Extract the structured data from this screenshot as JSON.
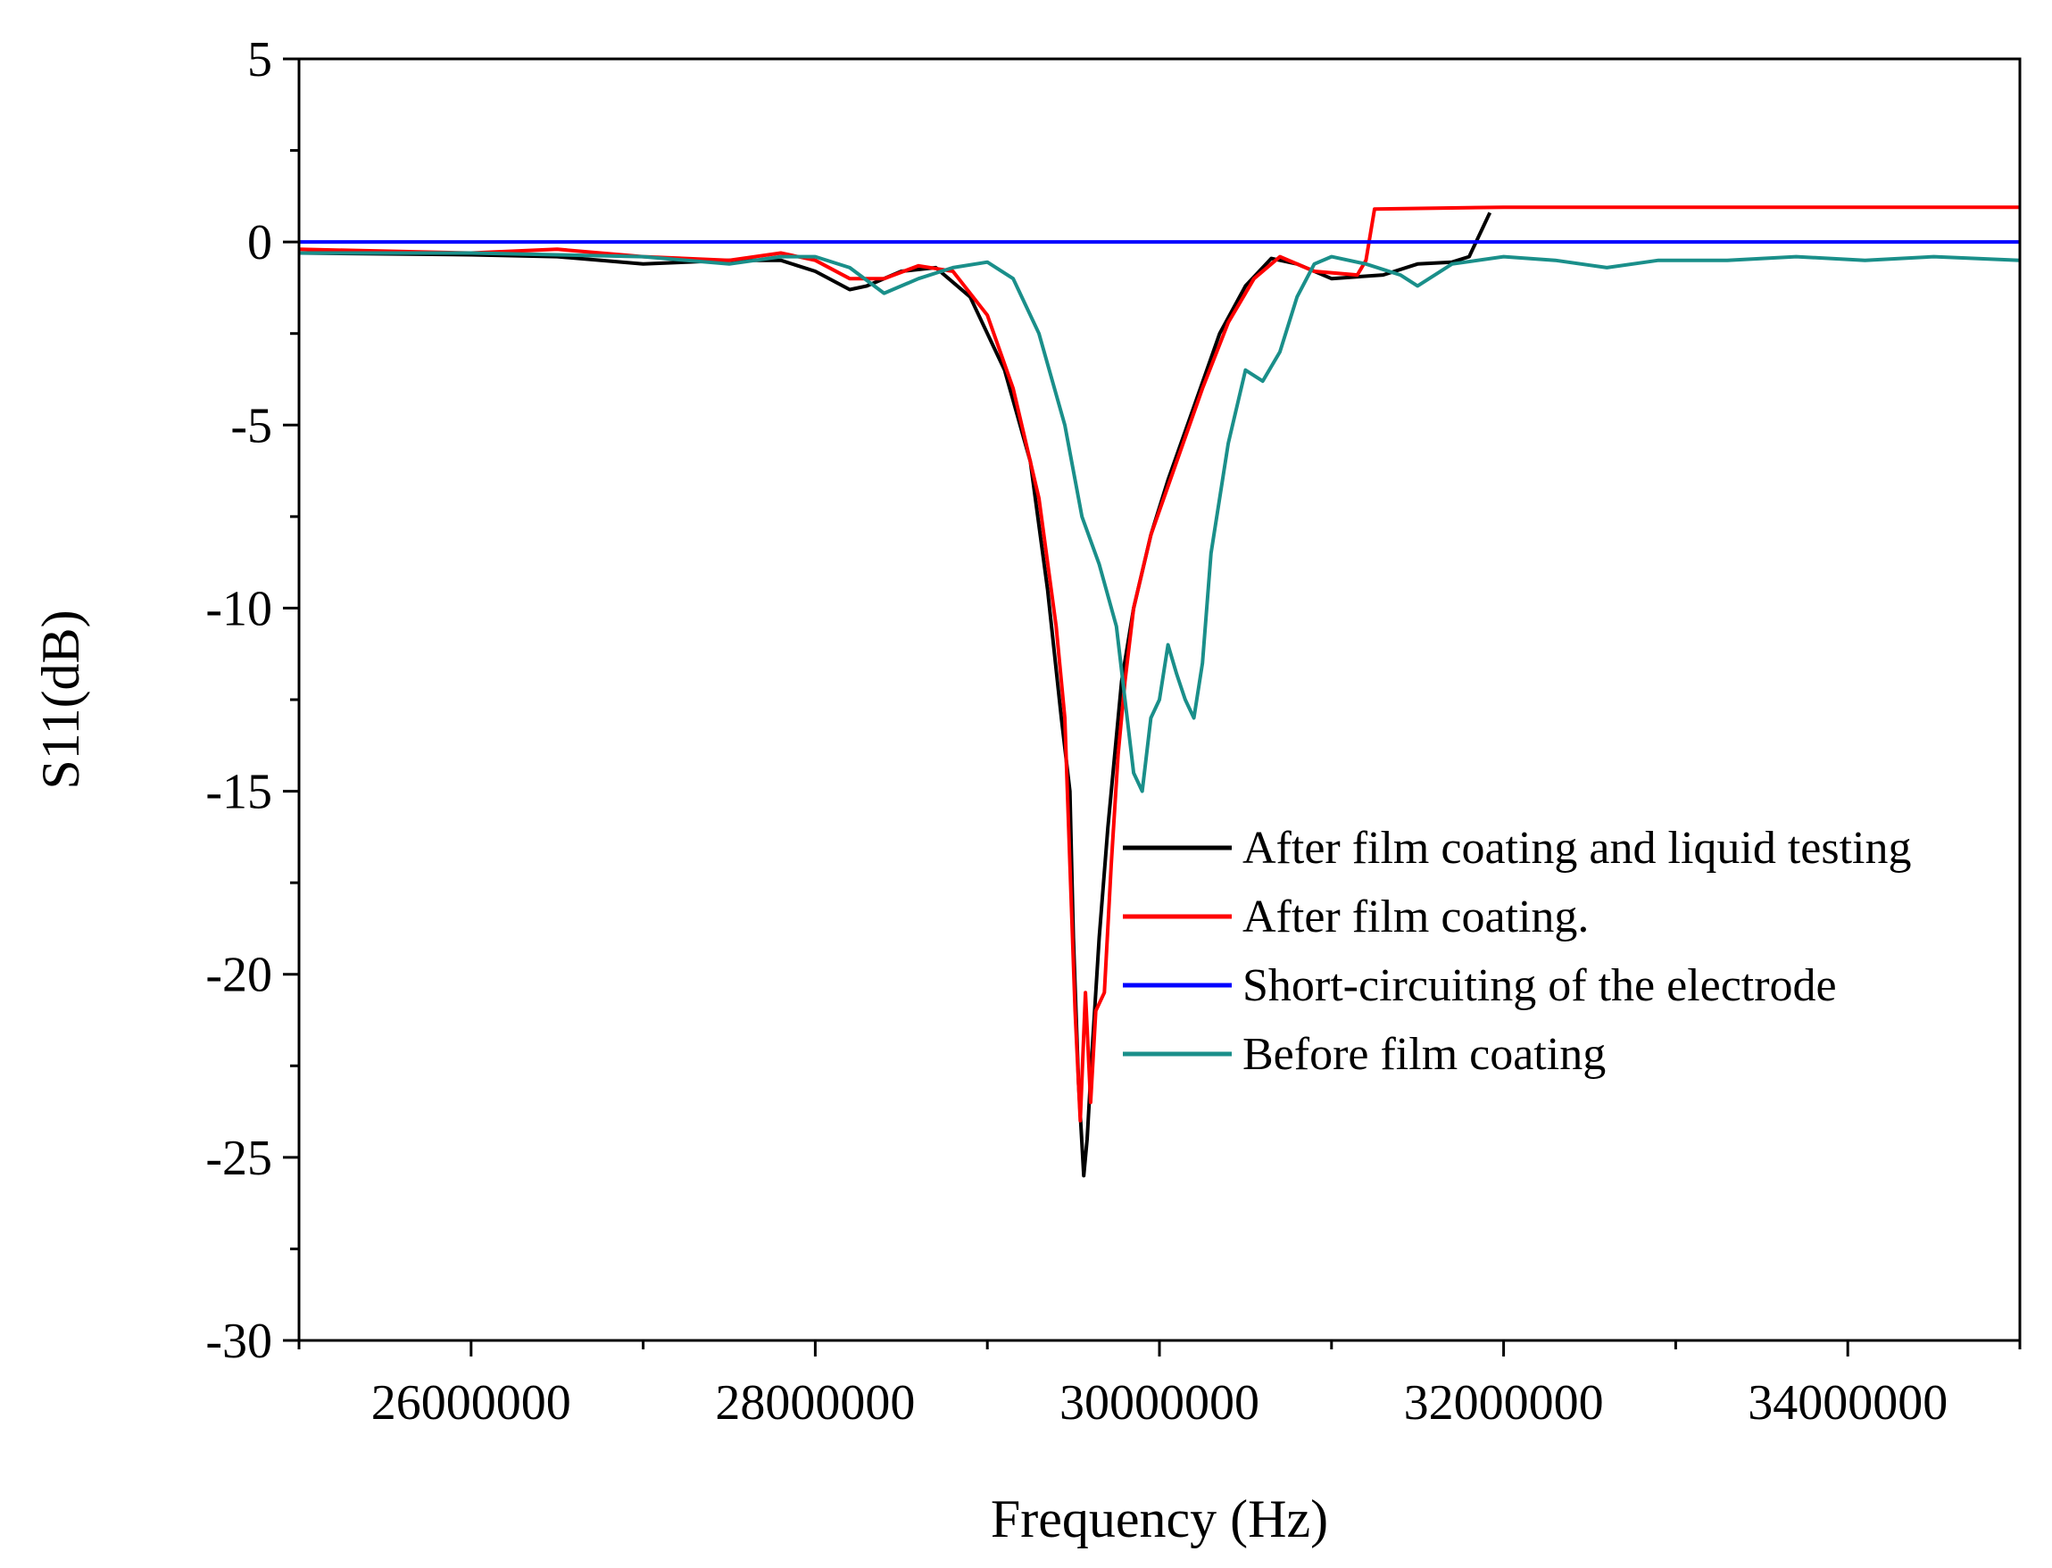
{
  "chart_data": {
    "type": "line",
    "title": "",
    "xlabel": "Frequency (Hz)",
    "ylabel": "S11(dB)",
    "xlim": [
      25000000,
      35000000
    ],
    "ylim": [
      -30,
      5
    ],
    "x_ticks": [
      26000000,
      28000000,
      30000000,
      32000000,
      34000000
    ],
    "x_tick_labels": [
      "26000000",
      "28000000",
      "30000000",
      "32000000",
      "34000000"
    ],
    "y_ticks": [
      5,
      0,
      -5,
      -10,
      -15,
      -20,
      -25,
      -30
    ],
    "y_tick_labels": [
      "5",
      "0",
      "-5",
      "-10",
      "-15",
      "-20",
      "-25",
      "-30"
    ],
    "legend_position": "center-right",
    "grid": false,
    "series": [
      {
        "name": "After film coating and liquid testing",
        "color": "#000000",
        "points": [
          [
            25000000,
            -0.3
          ],
          [
            26000000,
            -0.35
          ],
          [
            26500000,
            -0.4
          ],
          [
            27000000,
            -0.6
          ],
          [
            27500000,
            -0.5
          ],
          [
            27800000,
            -0.5
          ],
          [
            28000000,
            -0.8
          ],
          [
            28200000,
            -1.3
          ],
          [
            28300000,
            -1.2
          ],
          [
            28500000,
            -0.8
          ],
          [
            28700000,
            -0.7
          ],
          [
            28900000,
            -1.5
          ],
          [
            29100000,
            -3.5
          ],
          [
            29250000,
            -6.0
          ],
          [
            29350000,
            -9.5
          ],
          [
            29430000,
            -13.0
          ],
          [
            29480000,
            -15.0
          ],
          [
            29500000,
            -19.0
          ],
          [
            29530000,
            -23.0
          ],
          [
            29560000,
            -25.5
          ],
          [
            29580000,
            -24.5
          ],
          [
            29610000,
            -22.0
          ],
          [
            29650000,
            -19.0
          ],
          [
            29700000,
            -16.0
          ],
          [
            29780000,
            -12.0
          ],
          [
            29850000,
            -10.0
          ],
          [
            29950000,
            -8.0
          ],
          [
            30050000,
            -6.5
          ],
          [
            30200000,
            -4.5
          ],
          [
            30350000,
            -2.5
          ],
          [
            30500000,
            -1.2
          ],
          [
            30650000,
            -0.45
          ],
          [
            30800000,
            -0.6
          ],
          [
            31000000,
            -1.0
          ],
          [
            31300000,
            -0.9
          ],
          [
            31500000,
            -0.6
          ],
          [
            31700000,
            -0.55
          ],
          [
            31800000,
            -0.4
          ],
          [
            31850000,
            0.1
          ],
          [
            31920000,
            0.8
          ]
        ]
      },
      {
        "name": "After film coating.",
        "color": "#ff0000",
        "points": [
          [
            25000000,
            -0.2
          ],
          [
            26000000,
            -0.3
          ],
          [
            26500000,
            -0.2
          ],
          [
            27000000,
            -0.4
          ],
          [
            27500000,
            -0.5
          ],
          [
            27800000,
            -0.3
          ],
          [
            28000000,
            -0.5
          ],
          [
            28200000,
            -1.0
          ],
          [
            28400000,
            -1.0
          ],
          [
            28600000,
            -0.65
          ],
          [
            28800000,
            -0.8
          ],
          [
            29000000,
            -2.0
          ],
          [
            29150000,
            -4.0
          ],
          [
            29300000,
            -7.0
          ],
          [
            29400000,
            -10.5
          ],
          [
            29450000,
            -13.0
          ],
          [
            29480000,
            -17.0
          ],
          [
            29510000,
            -21.0
          ],
          [
            29540000,
            -24.0
          ],
          [
            29570000,
            -20.5
          ],
          [
            29600000,
            -23.5
          ],
          [
            29630000,
            -21.0
          ],
          [
            29680000,
            -20.5
          ],
          [
            29720000,
            -17.0
          ],
          [
            29760000,
            -14.0
          ],
          [
            29800000,
            -12.0
          ],
          [
            29850000,
            -10.0
          ],
          [
            29950000,
            -8.0
          ],
          [
            30100000,
            -6.0
          ],
          [
            30250000,
            -4.0
          ],
          [
            30400000,
            -2.2
          ],
          [
            30550000,
            -1.0
          ],
          [
            30700000,
            -0.4
          ],
          [
            30900000,
            -0.8
          ],
          [
            31150000,
            -0.9
          ],
          [
            31200000,
            -0.5
          ],
          [
            31250000,
            0.9
          ],
          [
            32000000,
            0.95
          ],
          [
            35000000,
            0.95
          ]
        ]
      },
      {
        "name": "Short-circuiting of the electrode",
        "color": "#0000ff",
        "points": [
          [
            25000000,
            0
          ],
          [
            35000000,
            0
          ]
        ]
      },
      {
        "name": "Before film coating",
        "color": "#1a8f8a",
        "points": [
          [
            25000000,
            -0.3
          ],
          [
            26000000,
            -0.3
          ],
          [
            26500000,
            -0.35
          ],
          [
            27000000,
            -0.4
          ],
          [
            27500000,
            -0.6
          ],
          [
            27800000,
            -0.4
          ],
          [
            28000000,
            -0.4
          ],
          [
            28200000,
            -0.7
          ],
          [
            28400000,
            -1.4
          ],
          [
            28600000,
            -1.0
          ],
          [
            28800000,
            -0.7
          ],
          [
            29000000,
            -0.55
          ],
          [
            29150000,
            -1.0
          ],
          [
            29300000,
            -2.5
          ],
          [
            29450000,
            -5.0
          ],
          [
            29550000,
            -7.5
          ],
          [
            29650000,
            -8.8
          ],
          [
            29750000,
            -10.5
          ],
          [
            29800000,
            -12.5
          ],
          [
            29850000,
            -14.5
          ],
          [
            29900000,
            -15.0
          ],
          [
            29950000,
            -13.0
          ],
          [
            30000000,
            -12.5
          ],
          [
            30050000,
            -11.0
          ],
          [
            30100000,
            -11.8
          ],
          [
            30150000,
            -12.5
          ],
          [
            30200000,
            -13.0
          ],
          [
            30250000,
            -11.5
          ],
          [
            30300000,
            -8.5
          ],
          [
            30400000,
            -5.5
          ],
          [
            30500000,
            -3.5
          ],
          [
            30600000,
            -3.8
          ],
          [
            30700000,
            -3.0
          ],
          [
            30800000,
            -1.5
          ],
          [
            30900000,
            -0.6
          ],
          [
            31000000,
            -0.4
          ],
          [
            31200000,
            -0.6
          ],
          [
            31400000,
            -0.9
          ],
          [
            31500000,
            -1.2
          ],
          [
            31700000,
            -0.6
          ],
          [
            32000000,
            -0.4
          ],
          [
            32300000,
            -0.5
          ],
          [
            32600000,
            -0.7
          ],
          [
            32900000,
            -0.5
          ],
          [
            33300000,
            -0.5
          ],
          [
            33700000,
            -0.4
          ],
          [
            34100000,
            -0.5
          ],
          [
            34500000,
            -0.4
          ],
          [
            35000000,
            -0.5
          ]
        ]
      }
    ]
  }
}
